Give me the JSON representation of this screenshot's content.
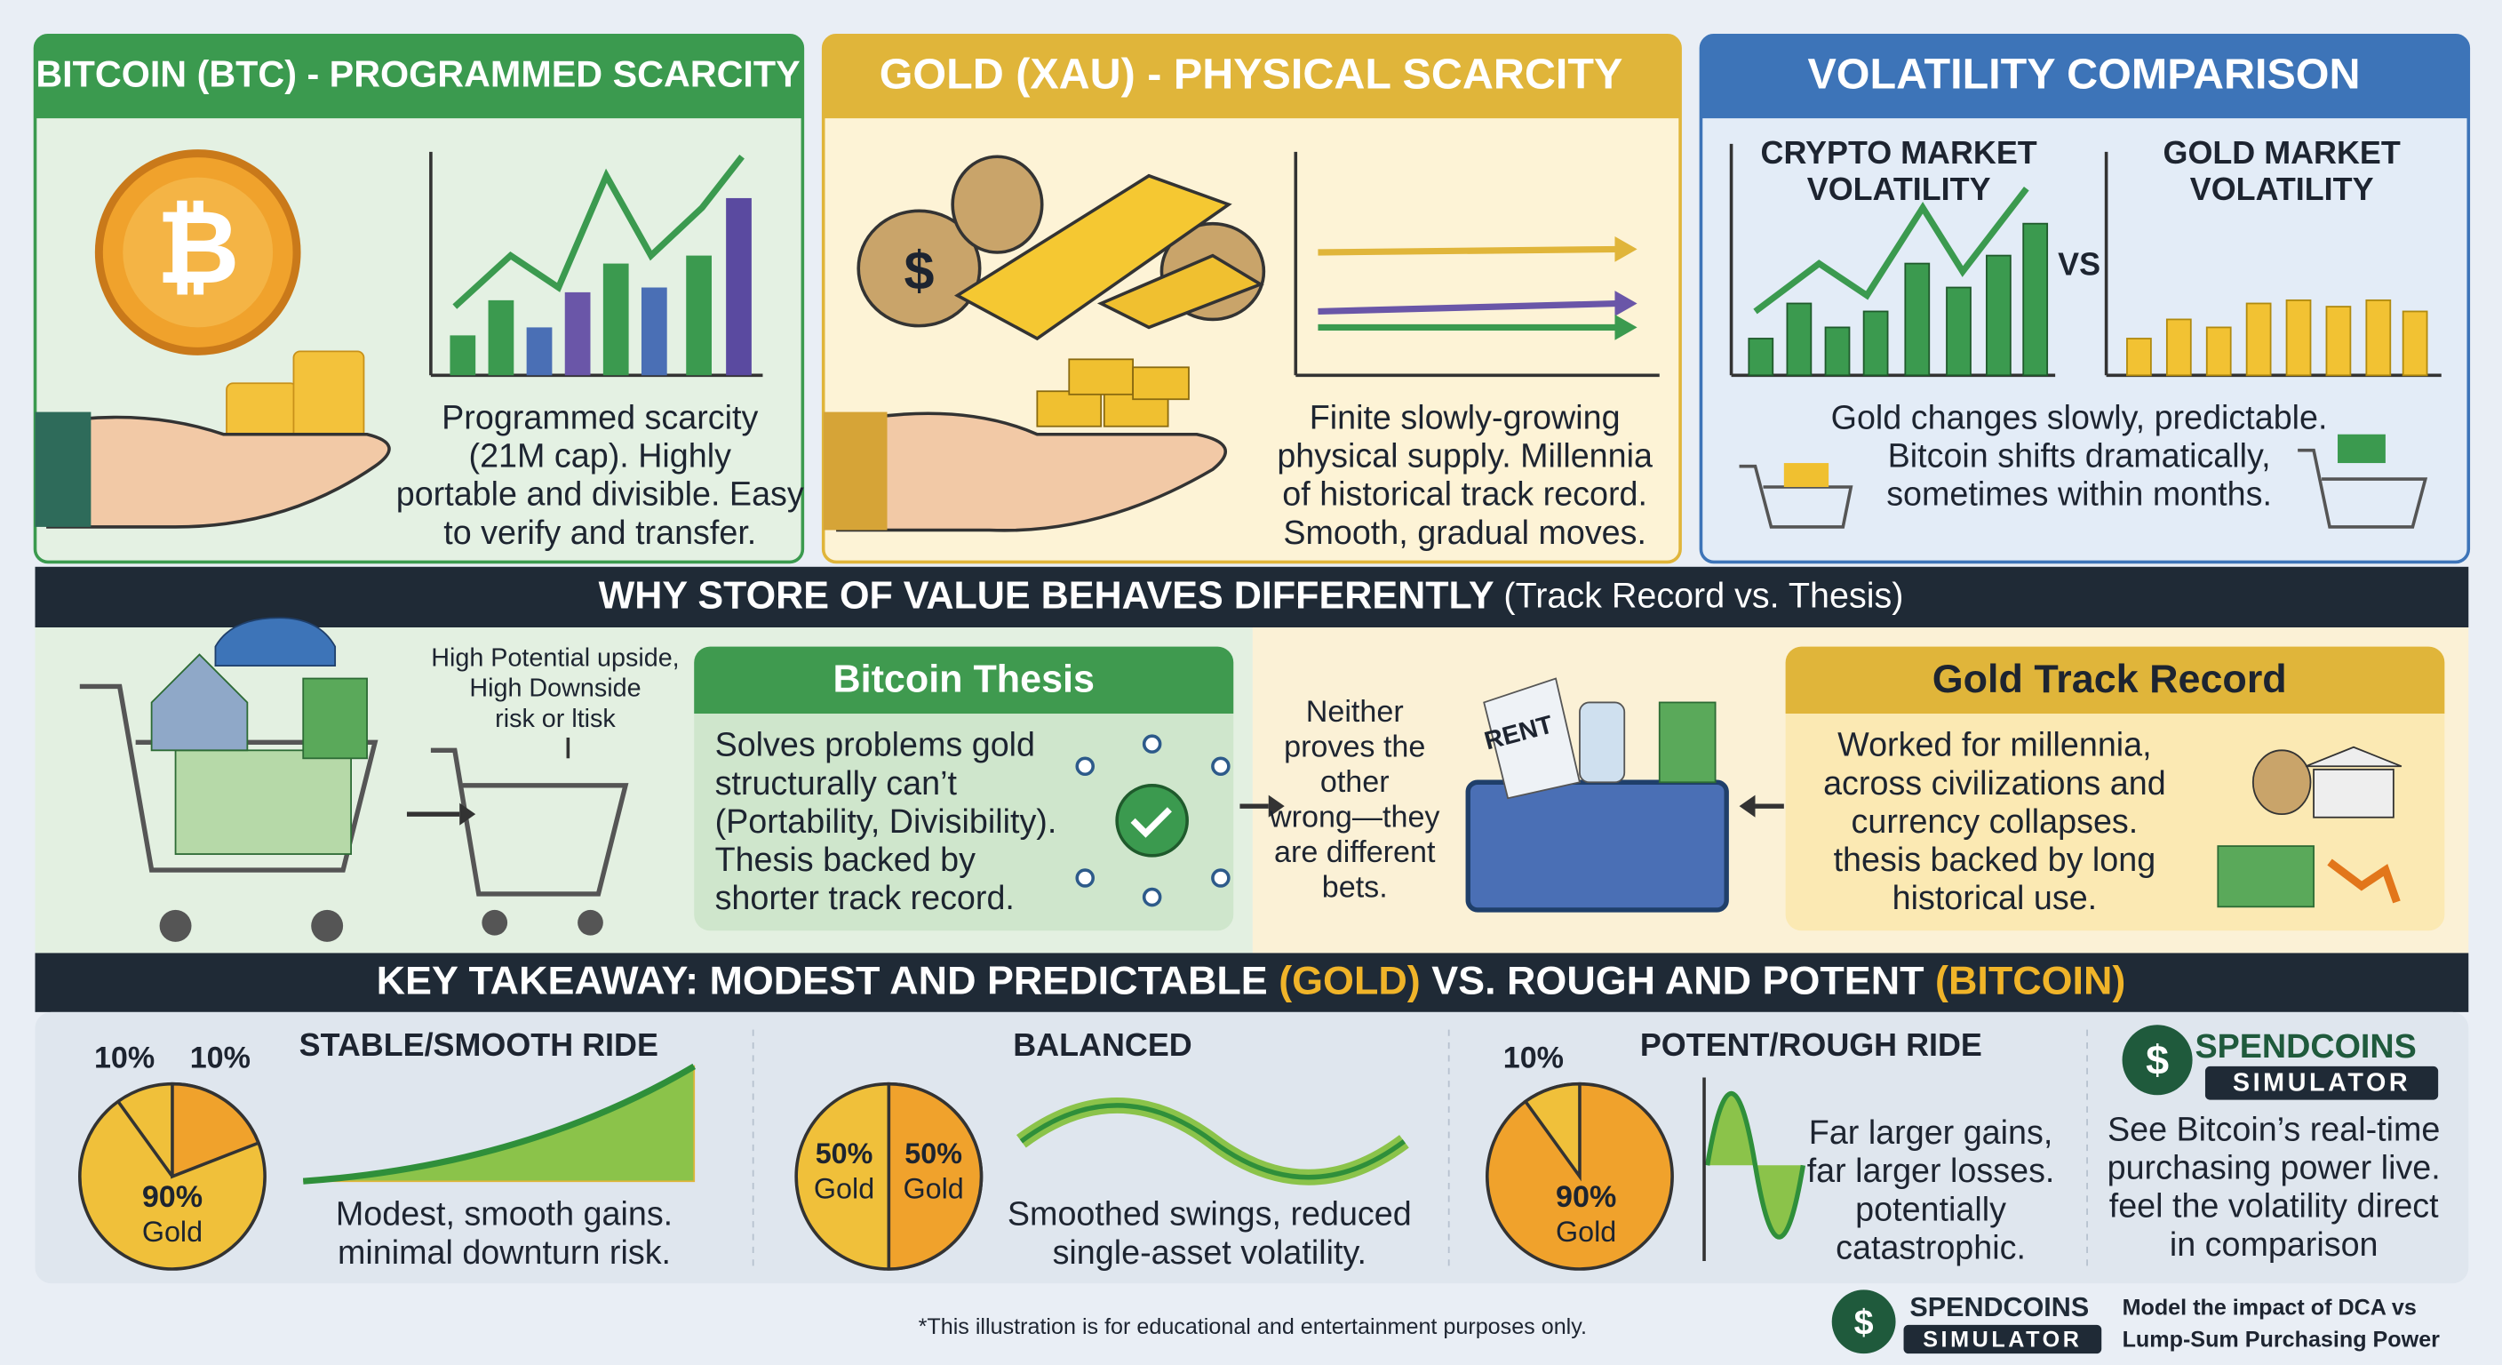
{
  "panels": [
    {
      "title": "BITCOIN (BTC) - PROGRAMMED SCARCITY",
      "text": [
        "Programmed scarcity",
        "(21M cap). Highly",
        "portable and divisible. Easy",
        "to verify and transfer."
      ]
    },
    {
      "title": "GOLD (XAU) - PHYSICAL SCARCITY",
      "text": [
        "Finite slowly-growing",
        "physical supply. Millennia",
        "of historical track record.",
        "Smooth, gradual moves."
      ]
    },
    {
      "title": "VOLATILITY COMPARISON",
      "crypto_label": [
        "CRYPTO MARKET",
        "VOLATILITY"
      ],
      "vs": "VS",
      "gold_label": [
        "GOLD MARKET",
        "VOLATILITY"
      ],
      "text": [
        "Gold changes slowly, predictable.",
        "Bitcoin shifts dramatically,",
        "sometimes within months."
      ]
    }
  ],
  "why": {
    "title": "WHY STORE OF VALUE BEHAVES DIFFERENTLY",
    "subtitle": "(Track Record vs. Thesis)",
    "cart_note": [
      "High Potential upside,",
      "High Downside",
      "risk or ltisk"
    ],
    "bitcoin_thesis": {
      "title": "Bitcoin Thesis",
      "text": [
        "Solves problems gold",
        "structurally can’t",
        "(Portability, Divisibility).",
        "Thesis backed by",
        "shorter track record."
      ]
    },
    "middle": [
      "Neither",
      "proves the",
      "other",
      "wrong—they",
      "are different",
      "bets."
    ],
    "basket_label": "RENT",
    "gold_track_record": {
      "title": "Gold Track Record",
      "text": [
        "Worked for millennia,",
        "across civilizations and",
        "currency collapses.",
        "thesis backed by long",
        "historical use."
      ]
    }
  },
  "takeaway": {
    "parts": [
      "KEY TAKEAWAY: MODEST AND PREDICTABLE ",
      "(GOLD)",
      " VS. ROUGH AND POTENT ",
      "(BITCOIN)"
    ],
    "stable": {
      "title": "STABLE/SMOOTH RIDE",
      "pie_labels": [
        "10%",
        "10%",
        "90%",
        "Gold"
      ],
      "text": [
        "Modest, smooth gains.",
        "minimal downturn risk."
      ]
    },
    "balanced": {
      "title": "BALANCED",
      "pie_labels": [
        "50%",
        "Gold",
        "50%",
        "Gold"
      ],
      "text": [
        "Smoothed swings, reduced",
        "single-asset volatility."
      ]
    },
    "potent": {
      "title": "POTENT/ROUGH RIDE",
      "pie_labels": [
        "10%",
        "90%",
        "Gold"
      ],
      "text": [
        "Far larger gains,",
        "far larger losses.",
        "potentially",
        "catastrophic."
      ]
    },
    "promo": {
      "brand": "SPENDCOINS",
      "badge": "SIMULATOR",
      "text": [
        "See Bitcoin’s real-time",
        "purchasing power live.",
        "feel the volatility direct",
        "in comparison"
      ]
    }
  },
  "footer": {
    "disclaimer": "*This illustration is for educational and entertainment purposes only.",
    "brand": "SPENDCOINS",
    "badge": "SIMULATOR",
    "text": [
      "Model the impact of DCA vs",
      "Lump-Sum Purchasing Power"
    ]
  }
}
